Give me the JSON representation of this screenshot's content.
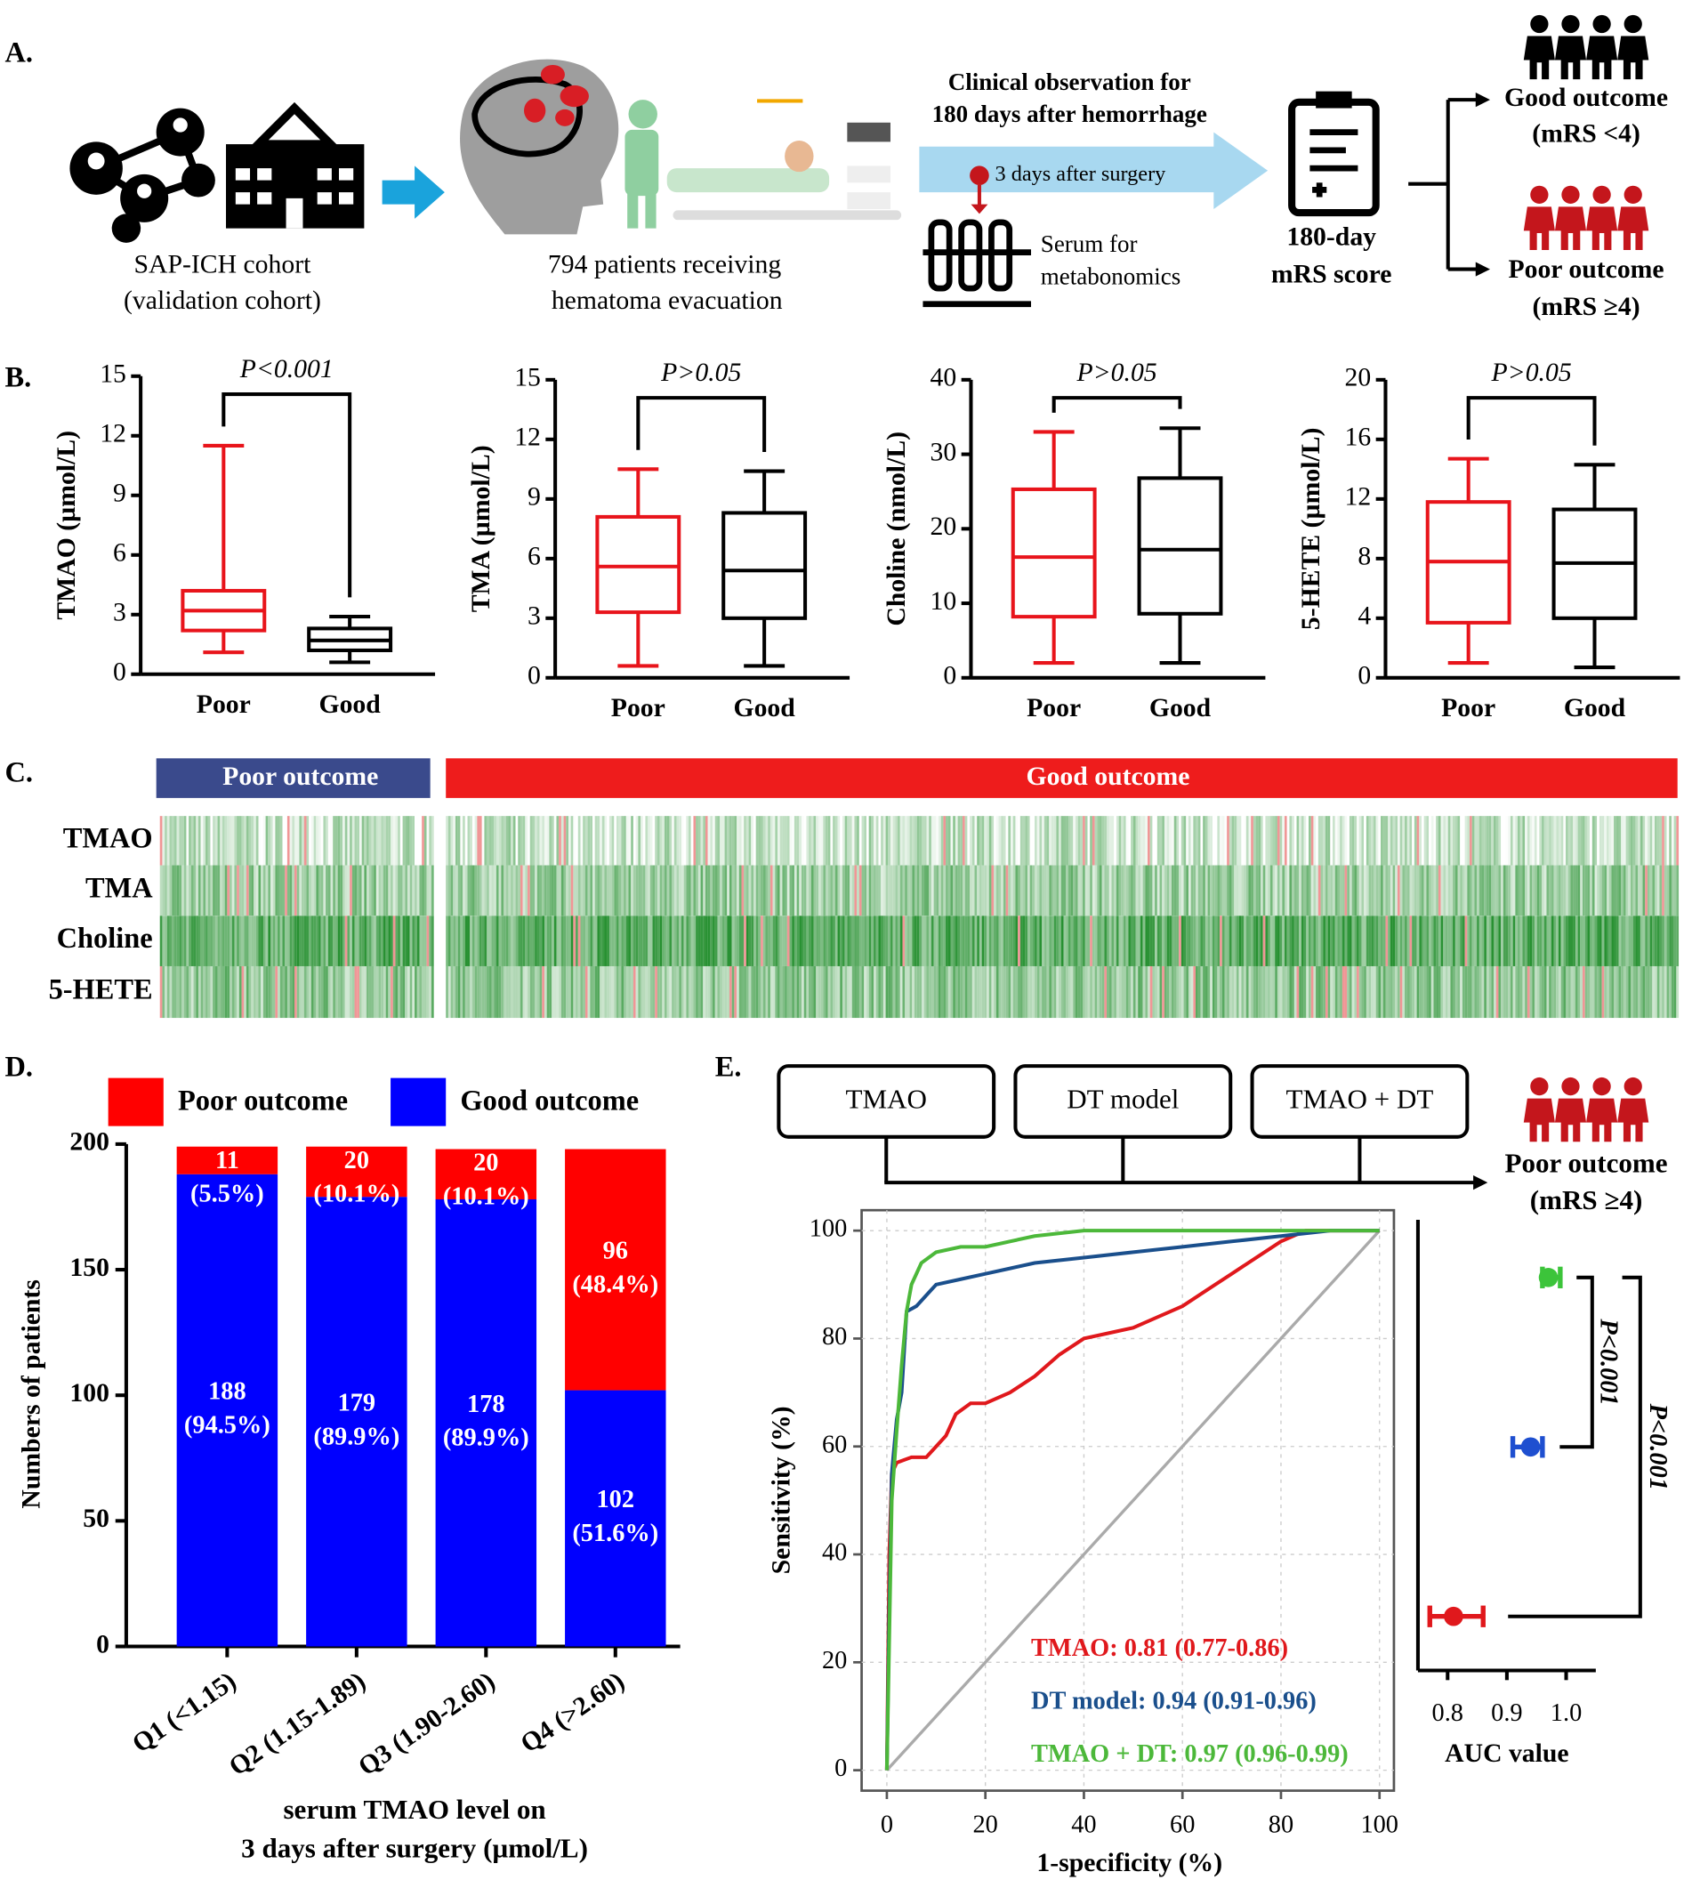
{
  "panel_labels": [
    "A.",
    "B.",
    "C.",
    "D.",
    "E."
  ],
  "panel_a": {
    "cohort": [
      "SAP-ICH cohort",
      "(validation cohort)"
    ],
    "patients": [
      "794 patients receiving",
      "hematoma evacuation"
    ],
    "observation": [
      "Clinical observation for",
      "180 days after hemorrhage"
    ],
    "timing": "3 days after surgery",
    "serum": [
      "Serum for",
      "metabonomics"
    ],
    "score": [
      "180-day",
      "mRS score"
    ],
    "good": [
      "Good outcome",
      "(mRS <4)"
    ],
    "poor": [
      "Poor outcome",
      "(mRS ≥4)"
    ]
  },
  "panel_c": {
    "groups": [
      "Poor outcome",
      "Good outcome"
    ],
    "rows": [
      "TMAO",
      "TMA",
      "Choline",
      "5-HETE"
    ]
  },
  "chart_data": [
    {
      "type": "box",
      "title": "P<0.001",
      "ylabel": "TMAO (µmol/L)",
      "categories": [
        "Poor",
        "Good"
      ],
      "ylim": [
        0,
        15
      ],
      "yticks": [
        0,
        3,
        6,
        9,
        12,
        15
      ],
      "boxes": [
        {
          "color": "#e8141b",
          "min": 1.1,
          "q1": 2.2,
          "median": 3.2,
          "q3": 4.2,
          "max": 11.5
        },
        {
          "color": "#000000",
          "min": 0.6,
          "q1": 1.2,
          "median": 1.7,
          "q3": 2.3,
          "max": 2.9
        }
      ]
    },
    {
      "type": "box",
      "title": "P>0.05",
      "ylabel": "TMA (µmol/L)",
      "categories": [
        "Poor",
        "Good"
      ],
      "ylim": [
        0,
        15
      ],
      "yticks": [
        0,
        3,
        6,
        9,
        12,
        15
      ],
      "boxes": [
        {
          "color": "#e8141b",
          "min": 0.6,
          "q1": 3.3,
          "median": 5.6,
          "q3": 8.1,
          "max": 10.5
        },
        {
          "color": "#000000",
          "min": 0.6,
          "q1": 3.0,
          "median": 5.4,
          "q3": 8.3,
          "max": 10.4
        }
      ]
    },
    {
      "type": "box",
      "title": "P>0.05",
      "ylabel": "Choline (nmol/L)",
      "categories": [
        "Poor",
        "Good"
      ],
      "ylim": [
        0,
        40
      ],
      "yticks": [
        0,
        10,
        20,
        30,
        40
      ],
      "boxes": [
        {
          "color": "#e8141b",
          "min": 2,
          "q1": 8.2,
          "median": 16.2,
          "q3": 25.3,
          "max": 33
        },
        {
          "color": "#000000",
          "min": 2,
          "q1": 8.6,
          "median": 17.2,
          "q3": 26.8,
          "max": 33.5
        }
      ]
    },
    {
      "type": "box",
      "title": "P>0.05",
      "ylabel": "5-HETE (µmol/L)",
      "categories": [
        "Poor",
        "Good"
      ],
      "ylim": [
        0,
        20
      ],
      "yticks": [
        0,
        4,
        8,
        12,
        16,
        20
      ],
      "boxes": [
        {
          "color": "#e8141b",
          "min": 1,
          "q1": 3.7,
          "median": 7.8,
          "q3": 11.8,
          "max": 14.7
        },
        {
          "color": "#000000",
          "min": 0.7,
          "q1": 4,
          "median": 7.7,
          "q3": 11.3,
          "max": 14.3
        }
      ]
    },
    {
      "type": "bar",
      "stacked": true,
      "ylabel": "Numbers of patients",
      "xlabel": [
        "serum TMAO level on",
        "3 days after surgery (µmol/L)"
      ],
      "categories": [
        "Q1 (<1.15)",
        "Q2 (1.15-1.89)",
        "Q3 (1.90-2.60)",
        "Q4 (>2.60)"
      ],
      "ylim": [
        0,
        200
      ],
      "yticks": [
        0,
        50,
        100,
        150,
        200
      ],
      "series": [
        {
          "name": "Good outcome",
          "color": "#0000ff",
          "values": [
            188,
            179,
            178,
            102
          ],
          "percent_labels": [
            "(94.5%)",
            "(89.9%)",
            "(89.9%)",
            "(51.6%)"
          ]
        },
        {
          "name": "Poor outcome",
          "color": "#ff0000",
          "values": [
            11,
            20,
            20,
            96
          ],
          "percent_labels": [
            "(5.5%)",
            "(10.1%)",
            "(10.1%)",
            "(48.4%)"
          ]
        }
      ]
    },
    {
      "type": "line",
      "xlabel": "1-specificity (%)",
      "ylabel": "Sensitivity (%)",
      "xlim": [
        0,
        100
      ],
      "ylim": [
        0,
        100
      ],
      "xticks": [
        0,
        20,
        40,
        60,
        80,
        100
      ],
      "yticks": [
        0,
        20,
        40,
        60,
        80,
        100
      ],
      "grid": true,
      "outcome": [
        "Poor outcome",
        "(mRS ≥4)"
      ],
      "series": [
        {
          "name": "TMAO",
          "color": "#e0181c",
          "label": "TMAO: 0.81 (0.77-0.86)",
          "x": [
            0,
            0.5,
            1,
            2,
            5,
            8,
            10,
            12,
            14,
            17,
            20,
            25,
            30,
            35,
            40,
            45,
            50,
            55,
            60,
            65,
            70,
            75,
            80,
            85,
            100
          ],
          "values": [
            0,
            40,
            55,
            57,
            58,
            58,
            60,
            62,
            66,
            68,
            68,
            70,
            73,
            77,
            80,
            81,
            82,
            84,
            86,
            89,
            92,
            95,
            98,
            100,
            100
          ]
        },
        {
          "name": "DT model",
          "color": "#1a4f8c",
          "label": "DT model: 0.94 (0.91-0.96)",
          "x": [
            0,
            0.5,
            1,
            2,
            3,
            4,
            6,
            8,
            10,
            15,
            20,
            25,
            30,
            40,
            50,
            60,
            70,
            80,
            90,
            100
          ],
          "values": [
            0,
            30,
            55,
            65,
            70,
            85,
            86,
            88,
            90,
            91,
            92,
            93,
            94,
            95,
            96,
            97,
            98,
            99,
            100,
            100
          ]
        },
        {
          "name": "TMAO + DT",
          "color": "#4cb83a",
          "label": "TMAO + DT: 0.97 (0.96-0.99)",
          "x": [
            0,
            1,
            2,
            3,
            4,
            5,
            7,
            10,
            15,
            20,
            30,
            40,
            100
          ],
          "values": [
            0,
            50,
            63,
            75,
            85,
            90,
            94,
            96,
            97,
            97,
            99,
            100,
            100
          ]
        }
      ]
    },
    {
      "type": "forest",
      "xlabel": "AUC value",
      "xlim": [
        0.75,
        1.05
      ],
      "xticks": [
        0.8,
        0.9,
        {
          "value": 1,
          "label": "1.0"
        }
      ],
      "values": [
        0.81,
        0.94,
        0.97
      ],
      "lower": [
        0.77,
        0.91,
        0.96
      ],
      "upper": [
        0.86,
        0.96,
        0.99
      ],
      "colors": [
        "#e0181c",
        "#1e4fd0",
        "#3cc43a"
      ],
      "annotations": [
        "P<0.001",
        "P<0.001"
      ]
    }
  ]
}
